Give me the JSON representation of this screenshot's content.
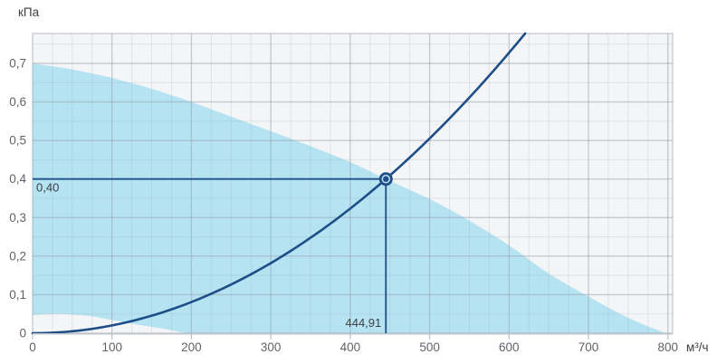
{
  "chart_data": {
    "type": "area",
    "title": "",
    "xlabel": "м³/ч",
    "ylabel": "кПа",
    "grid": true,
    "legend": false,
    "x_axis": {
      "min": 0,
      "max": 806,
      "major_step": 100,
      "minor_step": 25,
      "tick_values": [
        0,
        100,
        200,
        300,
        400,
        500,
        600,
        700,
        800
      ],
      "tick_labels": [
        "0",
        "100",
        "200",
        "300",
        "400",
        "500",
        "600",
        "700",
        "800"
      ],
      "unit_label": "м³/ч"
    },
    "y_axis": {
      "min": 0,
      "max": 0.7775,
      "major_step": 0.1,
      "minor_step": 0.05,
      "tick_values": [
        0,
        0.1,
        0.2,
        0.3,
        0.4,
        0.5,
        0.6,
        0.7
      ],
      "tick_labels": [
        "0",
        "0,1",
        "0,2",
        "0,3",
        "0,4",
        "0,5",
        "0,6",
        "0,7"
      ],
      "unit_label": "кПа"
    },
    "fan_region": {
      "upper_boundary": [
        [
          0,
          0.7
        ],
        [
          50,
          0.684
        ],
        [
          100,
          0.662
        ],
        [
          150,
          0.634
        ],
        [
          200,
          0.6
        ],
        [
          250,
          0.562
        ],
        [
          300,
          0.524
        ],
        [
          350,
          0.485
        ],
        [
          400,
          0.444
        ],
        [
          444.91,
          0.4
        ],
        [
          500,
          0.348
        ],
        [
          550,
          0.292
        ],
        [
          600,
          0.228
        ],
        [
          650,
          0.155
        ],
        [
          700,
          0.095
        ],
        [
          750,
          0.04
        ],
        [
          797,
          0
        ]
      ],
      "lower_boundary": [
        [
          0,
          0.047
        ],
        [
          33,
          0.05
        ],
        [
          70,
          0.045
        ],
        [
          96,
          0.036
        ],
        [
          130,
          0.023
        ],
        [
          164,
          0.012
        ],
        [
          192,
          0
        ]
      ]
    },
    "system_curve": {
      "type": "quadratic",
      "equation": "y = k·x²",
      "k": 2.0209e-06,
      "x_start": 0,
      "x_end": 620.3
    },
    "operating_point": {
      "flow": 444.91,
      "pressure": 0.4,
      "flow_label": "444,91",
      "pressure_label": "0,40"
    },
    "colors": {
      "region_fill": "#b5e3f2",
      "curve": "#1d4e87",
      "plot_bg": "#f4f5f7",
      "grid": "#9aa2ac",
      "axis": "#bfc4c9",
      "tick_text": "#5f6368",
      "annotation_text": "#3c4043",
      "marker_ring": "#b9d6ec"
    }
  }
}
